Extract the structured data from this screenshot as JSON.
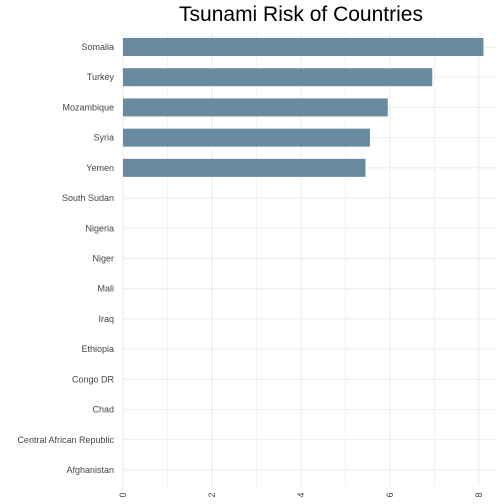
{
  "chart_data": {
    "type": "bar",
    "orientation": "horizontal",
    "title": "Tsunami Risk of Countries",
    "xlabel": "",
    "ylabel": "",
    "categories": [
      "Somalia",
      "Turkey",
      "Mozambique",
      "Syria",
      "Yemen",
      "South Sudan",
      "Nigeria",
      "Niger",
      "Mali",
      "Iraq",
      "Ethiopia",
      "Congo DR",
      "Chad",
      "Central African Republic",
      "Afghanistan"
    ],
    "values": [
      8.1,
      6.95,
      5.95,
      5.55,
      5.45,
      0,
      0,
      0,
      0,
      0,
      0,
      0,
      0,
      0,
      0
    ],
    "xlim": [
      0,
      8.1
    ],
    "xticks": [
      0,
      2,
      4,
      6,
      8
    ],
    "bar_color": "#688ba0",
    "grid": true,
    "legend": "none"
  }
}
